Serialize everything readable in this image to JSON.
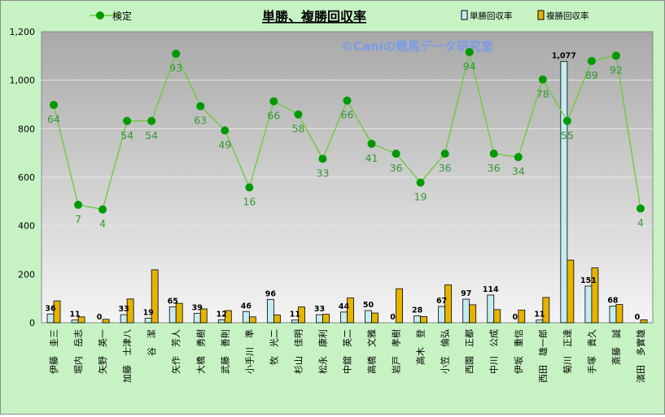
{
  "chart_data": {
    "type": "bar",
    "title": "単勝、複勝回収率",
    "watermark": "©Caniの競馬データ研究室",
    "ylim": [
      0,
      1200
    ],
    "yticks": [
      0,
      200,
      400,
      600,
      800,
      1000,
      1200
    ],
    "ytick_labels": [
      "0",
      "200",
      "400",
      "600",
      "800",
      "1,000",
      "1,200"
    ],
    "grid": true,
    "legend_position": "top",
    "categories": [
      "伊藤　圭三",
      "堀内　岳志",
      "矢野　英一",
      "加藤　士津八",
      "谷　潔",
      "矢作　芳人",
      "大橋　勇樹",
      "武藤　善則",
      "小手川　準",
      "牧　光二",
      "杉山　佳明",
      "松永　康利",
      "中舘　英二",
      "高橋　文雅",
      "岩戸　孝樹",
      "高木　登",
      "小笠　倫弘",
      "西園　正都",
      "中川　公成",
      "伊坂　重信",
      "西田　雄一郎",
      "菊川　正達",
      "手塚　貴久",
      "斎藤　誠",
      "濱田　多實雄"
    ],
    "series": [
      {
        "name": "単勝回収率",
        "kind": "bar",
        "color": "#c5ecf3",
        "values": [
          36,
          11,
          0,
          33,
          19,
          65,
          39,
          12,
          46,
          96,
          11,
          33,
          44,
          50,
          0,
          28,
          67,
          97,
          114,
          0,
          11,
          1077,
          151,
          68,
          0
        ],
        "labels": [
          "36",
          "11",
          "0",
          "33",
          "19",
          "65",
          "39",
          "12",
          "46",
          "96",
          "11",
          "33",
          "44",
          "50",
          "0",
          "28",
          "67",
          "97",
          "114",
          "0",
          "11",
          "1,077",
          "151",
          "68",
          "0"
        ]
      },
      {
        "name": "複勝回収率",
        "kind": "bar",
        "color": "#e6b400",
        "values": [
          90,
          24,
          14,
          98,
          218,
          80,
          57,
          50,
          24,
          32,
          65,
          35,
          102,
          40,
          140,
          25,
          156,
          74,
          54,
          52,
          104,
          258,
          226,
          75,
          12
        ]
      },
      {
        "name": "検定",
        "kind": "line",
        "color": "#66cc33",
        "values": [
          898,
          486,
          467,
          832,
          832,
          1109,
          893,
          793,
          558,
          913,
          859,
          676,
          916,
          738,
          697,
          578,
          697,
          1116,
          697,
          683,
          1003,
          832,
          1079,
          1101,
          471
        ],
        "labels": [
          "64",
          "7",
          "4",
          "54",
          "54",
          "93",
          "63",
          "49",
          "16",
          "66",
          "58",
          "33",
          "66",
          "41",
          "36",
          "19",
          "36",
          "94",
          "36",
          "34",
          "78",
          "55",
          "89",
          "92",
          "4"
        ]
      }
    ]
  }
}
